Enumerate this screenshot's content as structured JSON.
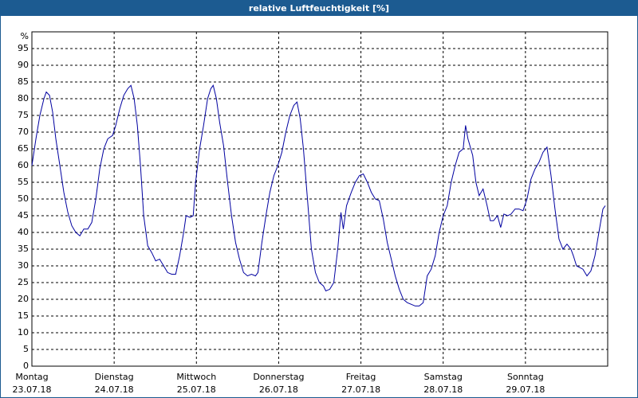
{
  "chart_data": {
    "type": "line",
    "title": "relative Luftfeuchtigkeit [%]",
    "y_unit": "%",
    "xlim": [
      0,
      7
    ],
    "ylim": [
      0,
      100
    ],
    "yticks": [
      0,
      5,
      10,
      15,
      20,
      25,
      30,
      35,
      40,
      45,
      50,
      55,
      60,
      65,
      70,
      75,
      80,
      85,
      90,
      95
    ],
    "xticks": [
      {
        "value": 0,
        "label": "Montag",
        "sublabel": "23.07.18"
      },
      {
        "value": 1,
        "label": "Dienstag",
        "sublabel": "24.07.18"
      },
      {
        "value": 2,
        "label": "Mittwoch",
        "sublabel": "25.07.18"
      },
      {
        "value": 3,
        "label": "Donnerstag",
        "sublabel": "26.07.18"
      },
      {
        "value": 4,
        "label": "Freitag",
        "sublabel": "27.07.18"
      },
      {
        "value": 5,
        "label": "Samstag",
        "sublabel": "28.07.18"
      },
      {
        "value": 6,
        "label": "Sonntag",
        "sublabel": "29.07.18"
      }
    ],
    "grid": true,
    "series": [
      {
        "color": "#0000a0",
        "x": [
          0,
          0.049,
          0.097,
          0.146,
          0.175,
          0.214,
          0.252,
          0.291,
          0.34,
          0.388,
          0.437,
          0.485,
          0.534,
          0.583,
          0.631,
          0.68,
          0.728,
          0.777,
          0.825,
          0.874,
          0.922,
          0.981,
          1.019,
          1.068,
          1.117,
          1.165,
          1.204,
          1.243,
          1.282,
          1.32,
          1.359,
          1.408,
          1.456,
          1.505,
          1.553,
          1.602,
          1.65,
          1.699,
          1.748,
          1.796,
          1.845,
          1.874,
          1.922,
          1.961,
          1.99,
          2.039,
          2.087,
          2.136,
          2.175,
          2.204,
          2.243,
          2.282,
          2.33,
          2.379,
          2.427,
          2.476,
          2.524,
          2.573,
          2.621,
          2.67,
          2.718,
          2.748,
          2.796,
          2.845,
          2.893,
          2.942,
          2.99,
          3.039,
          3.087,
          3.136,
          3.184,
          3.223,
          3.262,
          3.301,
          3.35,
          3.398,
          3.447,
          3.495,
          3.544,
          3.573,
          3.621,
          3.67,
          3.718,
          3.757,
          3.786,
          3.825,
          3.883,
          3.932,
          3.981,
          4.029,
          4.078,
          4.126,
          4.175,
          4.223,
          4.272,
          4.32,
          4.369,
          4.417,
          4.466,
          4.515,
          4.563,
          4.612,
          4.66,
          4.709,
          4.757,
          4.806,
          4.854,
          4.903,
          4.951,
          5,
          5.049,
          5.097,
          5.146,
          5.194,
          5.243,
          5.272,
          5.301,
          5.359,
          5.398,
          5.437,
          5.485,
          5.534,
          5.573,
          5.612,
          5.66,
          5.699,
          5.738,
          5.786,
          5.825,
          5.874,
          5.922,
          5.971,
          6.019,
          6.068,
          6.117,
          6.165,
          6.214,
          6.262,
          6.311,
          6.359,
          6.408,
          6.456,
          6.505,
          6.553,
          6.583,
          6.621,
          6.66,
          6.699,
          6.748,
          6.796,
          6.845,
          6.893,
          6.942,
          6.971
        ],
        "values": [
          60,
          68,
          75,
          80,
          82,
          81,
          76,
          68,
          60,
          52,
          46,
          42,
          40,
          39,
          41,
          41,
          43,
          50,
          59,
          65,
          68,
          69,
          72,
          77,
          81,
          83,
          84,
          80,
          72,
          60,
          45,
          36,
          34,
          31.5,
          32,
          30,
          28,
          27.5,
          27.5,
          33,
          40,
          45,
          44.5,
          45,
          55,
          65,
          72,
          80,
          83,
          84,
          80,
          73,
          66,
          55,
          45,
          37,
          32,
          28,
          27,
          27.5,
          27,
          28,
          37,
          45,
          52,
          57,
          60,
          64,
          70,
          75,
          78,
          79,
          74,
          65,
          50,
          35,
          28,
          25,
          24,
          22.5,
          23,
          25,
          35,
          46,
          41,
          48,
          52,
          55,
          57,
          57.5,
          55,
          52,
          50,
          49.5,
          44,
          37,
          32,
          27,
          23,
          20,
          19,
          18.5,
          18,
          18,
          19,
          27,
          29,
          33,
          40,
          45,
          48,
          55,
          60,
          64,
          65,
          72,
          68,
          63,
          55,
          51,
          53,
          48,
          43.5,
          43.5,
          45,
          41.5,
          45.5,
          45,
          45.5,
          47,
          47,
          46.5,
          50,
          56,
          59,
          61,
          64,
          65.5,
          57,
          47,
          38,
          35,
          36.5,
          35,
          33,
          30,
          29.5,
          29,
          27,
          28.5,
          33,
          40,
          47,
          48
        ]
      }
    ]
  }
}
